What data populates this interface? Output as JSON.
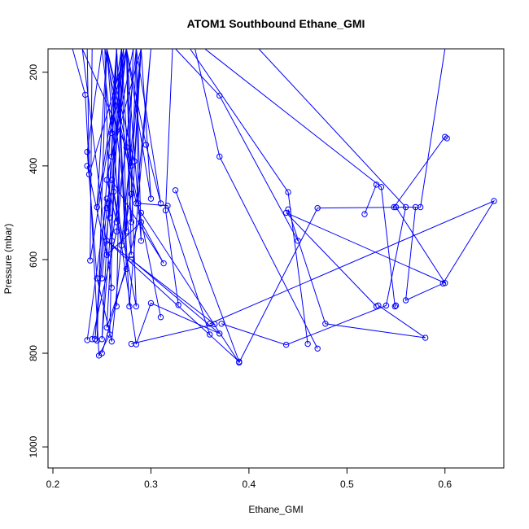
{
  "chart_data": {
    "type": "line",
    "title": "ATOM1 Southbound Ethane_GMI",
    "xlabel": "Ethane_GMI",
    "ylabel": "Pressure (mbar)",
    "xlim": [
      0.195,
      0.66
    ],
    "ylim": [
      1045,
      150
    ],
    "y_reversed": true,
    "x_ticks": [
      0.2,
      0.3,
      0.4,
      0.5,
      0.6
    ],
    "y_ticks": [
      200,
      400,
      600,
      800,
      1000
    ],
    "x_tick_labels": [
      "0.2",
      "0.3",
      "0.4",
      "0.5",
      "0.6"
    ],
    "y_tick_labels": [
      "200",
      "400",
      "600",
      "800",
      "1000"
    ],
    "series_color": "#0000ff",
    "markers": "open-circle",
    "series": [
      {
        "x": [
          0.22,
          0.233,
          0.247,
          0.258,
          0.265,
          0.243,
          0.255,
          0.275,
          0.285,
          0.262,
          0.25,
          0.265,
          0.275,
          0.255,
          0.27,
          0.28,
          0.29,
          0.26,
          0.245,
          0.235,
          0.25,
          0.26,
          0.275,
          0.295,
          0.31,
          0.285,
          0.265,
          0.24
        ],
        "y": [
          150,
          248,
          805,
          760,
          150,
          770,
          490,
          150,
          700,
          455,
          770,
          150,
          620,
          745,
          150,
          520,
          150,
          775,
          640,
          370,
          150,
          330,
          150,
          355,
          480,
          150,
          540,
          770
        ]
      },
      {
        "x": [
          0.24,
          0.238,
          0.272,
          0.265,
          0.255,
          0.282,
          0.275,
          0.27,
          0.258,
          0.253,
          0.285,
          0.3,
          0.278,
          0.265,
          0.26,
          0.29,
          0.283,
          0.255,
          0.27,
          0.28,
          0.285,
          0.29,
          0.275,
          0.25
        ],
        "y": [
          150,
          602,
          150,
          520,
          430,
          150,
          540,
          150,
          510,
          150,
          480,
          150,
          700,
          150,
          380,
          150,
          390,
          150,
          570,
          460,
          150,
          560,
          150,
          640
        ]
      },
      {
        "x": [
          0.235,
          0.237,
          0.275,
          0.28,
          0.29,
          0.3,
          0.275,
          0.28,
          0.255,
          0.245,
          0.27,
          0.265
        ],
        "y": [
          150,
          418,
          150,
          400,
          150,
          470,
          150,
          590,
          150,
          488,
          150,
          700
        ]
      },
      {
        "x": [
          0.285,
          0.287,
          0.317,
          0.36
        ],
        "y": [
          150,
          480,
          485,
          760
        ]
      },
      {
        "x": [
          0.322,
          0.315,
          0.328
        ],
        "y": [
          150,
          495,
          697
        ]
      },
      {
        "x": [
          0.235,
          0.255,
          0.29,
          0.313,
          0.26,
          0.285,
          0.3,
          0.37,
          0.28
        ],
        "y": [
          400,
          590,
          520,
          608,
          430,
          781,
          693,
          758,
          600
        ]
      },
      {
        "x": [
          0.325,
          0.39,
          0.255,
          0.365,
          0.28
        ],
        "y": [
          452,
          818,
          560,
          738,
          780
        ]
      },
      {
        "x": [
          0.345,
          0.37,
          0.47
        ],
        "y": [
          150,
          380,
          790
        ]
      },
      {
        "x": [
          0.34,
          0.44,
          0.46
        ],
        "y": [
          150,
          456,
          780
        ]
      },
      {
        "x": [
          0.325,
          0.37,
          0.45
        ],
        "y": [
          150,
          250,
          560
        ]
      },
      {
        "x": [
          0.44,
          0.478,
          0.58,
          0.532
        ],
        "y": [
          493,
          737,
          767,
          698
        ]
      },
      {
        "x": [
          0.355,
          0.535,
          0.549,
          0.55
        ],
        "y": [
          150,
          445,
          700,
          698
        ]
      },
      {
        "x": [
          0.41,
          0.56,
          0.54,
          0.438,
          0.372
        ],
        "y": [
          150,
          488,
          698,
          782,
          737
        ]
      },
      {
        "x": [
          0.53,
          0.438,
          0.6,
          0.55
        ],
        "y": [
          700,
          500,
          650,
          488
        ]
      },
      {
        "x": [
          0.57,
          0.56,
          0.598,
          0.65,
          0.36
        ],
        "y": [
          488,
          687,
          651,
          475,
          737
        ]
      },
      {
        "x": [
          0.602,
          0.6,
          0.548
        ],
        "y": [
          341,
          338,
          488
        ]
      },
      {
        "x": [
          0.53,
          0.518
        ],
        "y": [
          440,
          503
        ]
      },
      {
        "x": [
          0.31,
          0.255,
          0.245
        ],
        "y": [
          723,
          150,
          773
        ]
      },
      {
        "x": [
          0.26,
          0.23,
          0.275,
          0.26,
          0.255,
          0.235
        ],
        "y": [
          660,
          150,
          360,
          560,
          470,
          772
        ]
      },
      {
        "x": [
          0.6,
          0.575,
          0.47,
          0.39,
          0.29,
          0.25
        ],
        "y": [
          150,
          488,
          490,
          820,
          500,
          800
        ]
      }
    ]
  }
}
